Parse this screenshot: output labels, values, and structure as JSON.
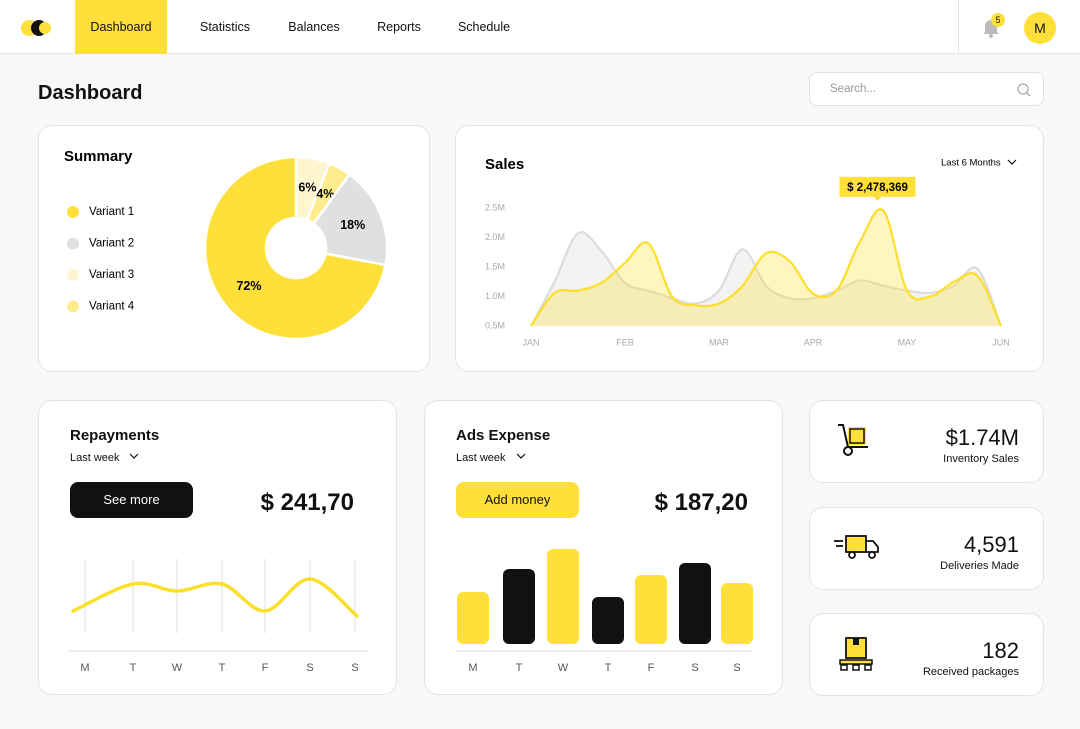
{
  "nav": {
    "items": [
      "Dashboard",
      "Statistics",
      "Balances",
      "Reports",
      "Schedule"
    ],
    "notifications": "5",
    "avatar": "M"
  },
  "page_title": "Dashboard",
  "search_placeholder": "Search...",
  "summary": {
    "title": "Summary",
    "chart_data": {
      "type": "pie",
      "categories": [
        "Variant 1",
        "Variant 2",
        "Variant 3",
        "Variant 4"
      ],
      "values": [
        72,
        18,
        6,
        4
      ],
      "value_labels": [
        "72%",
        "18%",
        "6%",
        "4%"
      ],
      "colors": [
        "#ffe03a",
        "#e0e0e0",
        "#fff6cf",
        "#ffec8c"
      ]
    }
  },
  "sales": {
    "title": "Sales",
    "period": "Last 6 Months",
    "chart_data": {
      "type": "line",
      "x": [
        0,
        0.25,
        0.5,
        0.75,
        1,
        1.25,
        1.5,
        1.75,
        2,
        2.25,
        2.5,
        2.75,
        3,
        3.25,
        3.5,
        3.75,
        4,
        4.25,
        4.5,
        4.75,
        5
      ],
      "xlim": [
        0,
        5
      ],
      "xticks": [
        {
          "value": 0,
          "label": "JAN"
        },
        {
          "value": 1,
          "label": "FEB"
        },
        {
          "value": 2,
          "label": "MAR"
        },
        {
          "value": 3,
          "label": "APR"
        },
        {
          "value": 4,
          "label": "MAY"
        },
        {
          "value": 5,
          "label": "JUN"
        }
      ],
      "ylim": [
        0.5,
        2.6
      ],
      "yticks": [
        {
          "value": 0.5,
          "label": "0,5M"
        },
        {
          "value": 1,
          "label": "1.0M"
        },
        {
          "value": 1.5,
          "label": "1.5M"
        },
        {
          "value": 2,
          "label": "2.0M"
        },
        {
          "value": 2.5,
          "label": "2.5M"
        }
      ],
      "series": [
        {
          "color": "#dcdcdc",
          "values": [
            0.5,
            1.25,
            2.07,
            1.77,
            1.23,
            1.1,
            0.97,
            0.88,
            1.1,
            1.8,
            1.18,
            0.97,
            0.97,
            1.1,
            1.27,
            1.18,
            1.1,
            1.06,
            1.18,
            1.47,
            0.5
          ]
        },
        {
          "color": "#fbdf2a",
          "values": [
            0.5,
            1.06,
            1.1,
            1.23,
            1.57,
            1.9,
            1.0,
            0.85,
            0.88,
            1.18,
            1.73,
            1.6,
            1.05,
            1.1,
            1.93,
            2.45,
            1.1,
            1.0,
            1.25,
            1.35,
            0.5
          ]
        }
      ],
      "annotation": "$ 2,478,369"
    }
  },
  "repayments": {
    "title": "Repayments",
    "period": "Last week",
    "button": "See more",
    "amount": "$ 241,70",
    "chart_data": {
      "type": "line",
      "categories": [
        "M",
        "T",
        "W",
        "T",
        "F",
        "S",
        "S"
      ],
      "values": [
        40,
        67,
        60,
        67,
        40,
        72,
        35
      ],
      "ylim": [
        0,
        100
      ],
      "color": "#fbdf2a"
    }
  },
  "ads_expense": {
    "title": "Ads Expense",
    "period": "Last week",
    "button": "Add money",
    "amount": "$ 187,20",
    "chart_data": {
      "type": "bar",
      "categories": [
        "M",
        "T",
        "W",
        "T",
        "F",
        "S",
        "S"
      ],
      "values": [
        52,
        75,
        95,
        47,
        69,
        81,
        61
      ],
      "ylim": [
        0,
        100
      ],
      "colors": [
        "#ffe03a",
        "#111111",
        "#ffe03a",
        "#111111",
        "#ffe03a",
        "#111111",
        "#ffe03a"
      ]
    }
  },
  "stats": [
    {
      "value": "$1.74M",
      "label": "Inventory Sales"
    },
    {
      "value": "4,591",
      "label": "Deliveries Made"
    },
    {
      "value": "182",
      "label": "Received packages"
    }
  ]
}
